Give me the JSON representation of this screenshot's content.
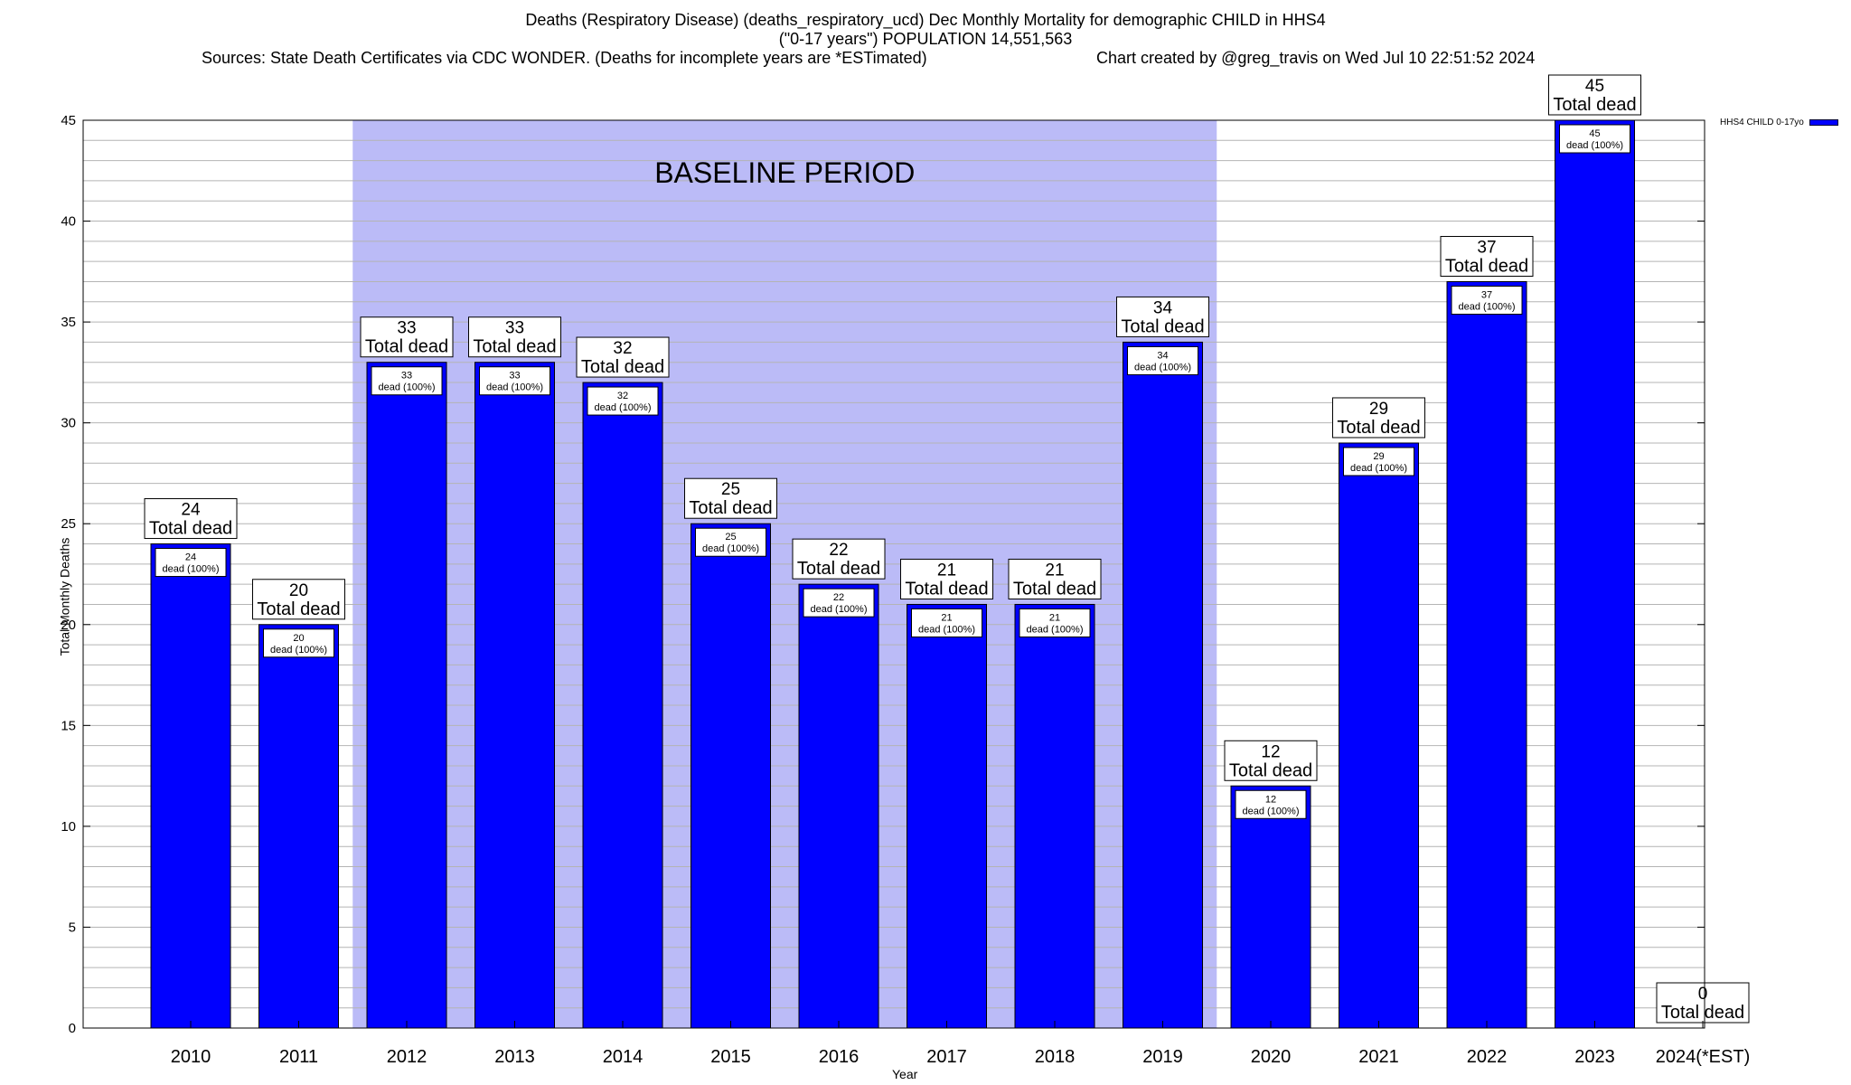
{
  "title_lines": [
    "Deaths (Respiratory Disease) (deaths_respiratory_ucd) Dec Monthly Mortality for demographic CHILD in HHS4",
    "(\"0-17 years\") POPULATION 14,551,563"
  ],
  "sources": "Sources: State Death Certificates via CDC WONDER. (Deaths for incomplete years are *ESTimated)",
  "credit": "Chart created by @greg_travis on Wed Jul 10 22:51:52 2024",
  "colors": {
    "bar": "#0000ff",
    "baseline_shade": "#bbbbf7",
    "grid": "#b4b4b4"
  },
  "chart_data": {
    "type": "bar",
    "xlabel": "Year",
    "ylabel": "Total Monthly Deaths",
    "ylim": [
      0,
      45
    ],
    "yticks": [
      0,
      5,
      10,
      15,
      20,
      25,
      30,
      35,
      40,
      45
    ],
    "categories": [
      "2010",
      "2011",
      "2012",
      "2013",
      "2014",
      "2015",
      "2016",
      "2017",
      "2018",
      "2019",
      "2020",
      "2021",
      "2022",
      "2023",
      "2024(*EST)"
    ],
    "series": [
      {
        "name": "HHS4 CHILD 0-17yo",
        "values": [
          24,
          20,
          33,
          33,
          32,
          25,
          22,
          21,
          21,
          34,
          12,
          29,
          37,
          45,
          0
        ]
      }
    ],
    "top_label_suffix": "Total dead",
    "inner_label_suffix": "dead (100%)",
    "shaded_region": {
      "label": "BASELINE PERIOD",
      "from_category": "2012",
      "to_category": "2019"
    },
    "grid": true,
    "legend_position": "top-right"
  }
}
